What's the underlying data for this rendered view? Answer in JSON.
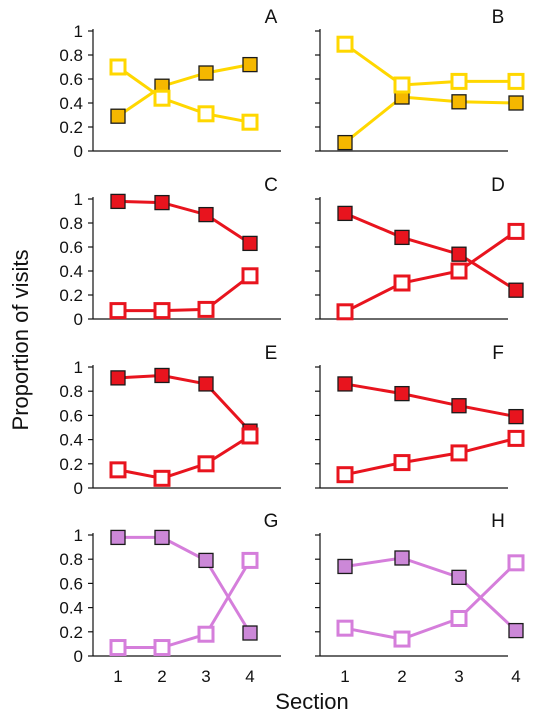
{
  "ylabel": "Proportion of visits",
  "xlabel": "Section",
  "x_ticks": [
    "1",
    "2",
    "3",
    "4"
  ],
  "y_ticks": [
    "0",
    "0.2",
    "0.4",
    "0.6",
    "0.8",
    "1"
  ],
  "colors": {
    "yellow_line": "#FFD700",
    "yellow_fill": "#F5B800",
    "red": "#E8141E",
    "purple": "#D57EDB",
    "purple_fill": "#CC88D8",
    "marker_edge": "#1a1a1a"
  },
  "chart_data": [
    {
      "type": "line",
      "panel": "A",
      "ylim": [
        0,
        1
      ],
      "x": [
        1,
        2,
        3,
        4
      ],
      "color": "yellow",
      "show_y_tick_labels": true,
      "show_x_tick_labels": false,
      "series": [
        {
          "marker": "filled-square",
          "values": [
            0.29,
            0.54,
            0.65,
            0.72
          ]
        },
        {
          "marker": "open-square",
          "values": [
            0.7,
            0.44,
            0.31,
            0.24
          ]
        }
      ]
    },
    {
      "type": "line",
      "panel": "B",
      "ylim": [
        0,
        1
      ],
      "x": [
        1,
        2,
        3,
        4
      ],
      "color": "yellow",
      "show_y_tick_labels": false,
      "show_x_tick_labels": false,
      "series": [
        {
          "marker": "filled-square",
          "values": [
            0.07,
            0.45,
            0.41,
            0.4
          ]
        },
        {
          "marker": "open-square",
          "values": [
            0.89,
            0.55,
            0.58,
            0.58
          ]
        }
      ]
    },
    {
      "type": "line",
      "panel": "C",
      "ylim": [
        0,
        1
      ],
      "x": [
        1,
        2,
        3,
        4
      ],
      "color": "red",
      "show_y_tick_labels": true,
      "show_x_tick_labels": false,
      "series": [
        {
          "marker": "filled-square",
          "values": [
            0.98,
            0.97,
            0.87,
            0.63
          ]
        },
        {
          "marker": "open-square",
          "values": [
            0.07,
            0.07,
            0.08,
            0.36
          ]
        }
      ]
    },
    {
      "type": "line",
      "panel": "D",
      "ylim": [
        0,
        1
      ],
      "x": [
        1,
        2,
        3,
        4
      ],
      "color": "red",
      "show_y_tick_labels": false,
      "show_x_tick_labels": false,
      "series": [
        {
          "marker": "filled-square",
          "values": [
            0.88,
            0.68,
            0.54,
            0.24
          ]
        },
        {
          "marker": "open-square",
          "values": [
            0.06,
            0.3,
            0.4,
            0.73
          ]
        }
      ]
    },
    {
      "type": "line",
      "panel": "E",
      "ylim": [
        0,
        1
      ],
      "x": [
        1,
        2,
        3,
        4
      ],
      "color": "red",
      "show_y_tick_labels": true,
      "show_x_tick_labels": false,
      "series": [
        {
          "marker": "filled-square",
          "values": [
            0.91,
            0.93,
            0.86,
            0.47
          ]
        },
        {
          "marker": "open-square",
          "values": [
            0.15,
            0.08,
            0.2,
            0.43
          ]
        }
      ]
    },
    {
      "type": "line",
      "panel": "F",
      "ylim": [
        0,
        1
      ],
      "x": [
        1,
        2,
        3,
        4
      ],
      "color": "red",
      "show_y_tick_labels": false,
      "show_x_tick_labels": false,
      "series": [
        {
          "marker": "filled-square",
          "values": [
            0.86,
            0.78,
            0.68,
            0.59
          ]
        },
        {
          "marker": "open-square",
          "values": [
            0.11,
            0.21,
            0.29,
            0.41
          ]
        }
      ]
    },
    {
      "type": "line",
      "panel": "G",
      "ylim": [
        0,
        1
      ],
      "x": [
        1,
        2,
        3,
        4
      ],
      "color": "purple",
      "show_y_tick_labels": true,
      "show_x_tick_labels": true,
      "series": [
        {
          "marker": "filled-square",
          "values": [
            0.98,
            0.98,
            0.79,
            0.19
          ]
        },
        {
          "marker": "open-square",
          "values": [
            0.07,
            0.07,
            0.18,
            0.79
          ]
        }
      ]
    },
    {
      "type": "line",
      "panel": "H",
      "ylim": [
        0,
        1
      ],
      "x": [
        1,
        2,
        3,
        4
      ],
      "color": "purple",
      "show_y_tick_labels": false,
      "show_x_tick_labels": true,
      "series": [
        {
          "marker": "filled-square",
          "values": [
            0.74,
            0.81,
            0.65,
            0.21
          ]
        },
        {
          "marker": "open-square",
          "values": [
            0.23,
            0.14,
            0.31,
            0.77
          ]
        }
      ]
    }
  ]
}
